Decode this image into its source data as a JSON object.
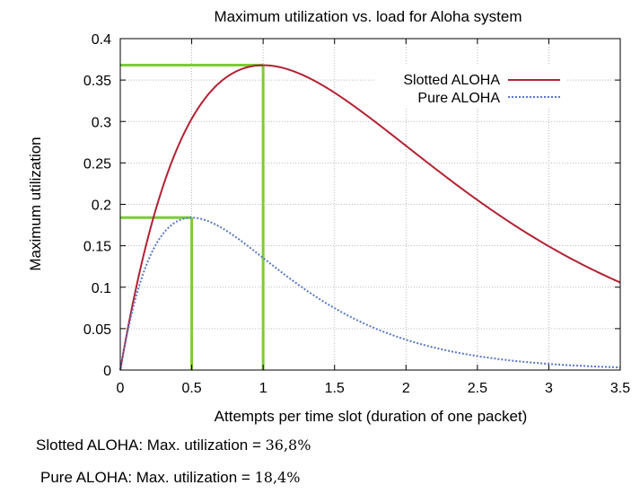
{
  "chart_data": {
    "type": "line",
    "title": "Maximum utilization vs. load for Aloha system",
    "xlabel": "Attempts per time slot (duration of one packet)",
    "ylabel": "Maximum utilization",
    "xlim": [
      0,
      3.5
    ],
    "ylim": [
      0,
      0.4
    ],
    "xticks": [
      0,
      0.5,
      1,
      1.5,
      2,
      2.5,
      3,
      3.5
    ],
    "xtick_labels": [
      "0",
      "0.5",
      "1",
      "1.5",
      "2",
      "2.5",
      "3",
      "3.5"
    ],
    "yticks": [
      0,
      0.05,
      0.1,
      0.15,
      0.2,
      0.25,
      0.3,
      0.35,
      0.4
    ],
    "ytick_labels": [
      "0",
      "0.05",
      "0.1",
      "0.15",
      "0.2",
      "0.25",
      "0.3",
      "0.35",
      "0.4"
    ],
    "grid": true,
    "legend_position": "top-right",
    "series": [
      {
        "name": "Slotted ALOHA",
        "formula": "G*exp(-G)",
        "color": "#b22234",
        "dash": "solid",
        "x": [
          0,
          0.25,
          0.5,
          0.75,
          1,
          1.5,
          2,
          2.5,
          3,
          3.5
        ],
        "y": [
          0,
          0.195,
          0.303,
          0.354,
          0.368,
          0.335,
          0.271,
          0.205,
          0.149,
          0.106
        ]
      },
      {
        "name": "Pure ALOHA",
        "formula": "G*exp(-2G)",
        "color": "#5a78c8",
        "dash": "dotted",
        "x": [
          0,
          0.25,
          0.5,
          0.75,
          1,
          1.5,
          2,
          2.5,
          3,
          3.5
        ],
        "y": [
          0,
          0.152,
          0.184,
          0.167,
          0.135,
          0.075,
          0.037,
          0.017,
          0.007,
          0.003
        ]
      }
    ],
    "markers": [
      {
        "x": 1,
        "y": 0.368,
        "color": "#7ccc34"
      },
      {
        "x": 0.5,
        "y": 0.184,
        "color": "#7ccc34"
      }
    ]
  },
  "captions": {
    "slotted_label": "Slotted ALOHA: Max. utilization = ",
    "slotted_value": "36,8%",
    "pure_label": "Pure ALOHA: Max. utilization = ",
    "pure_value": "18,4%"
  }
}
